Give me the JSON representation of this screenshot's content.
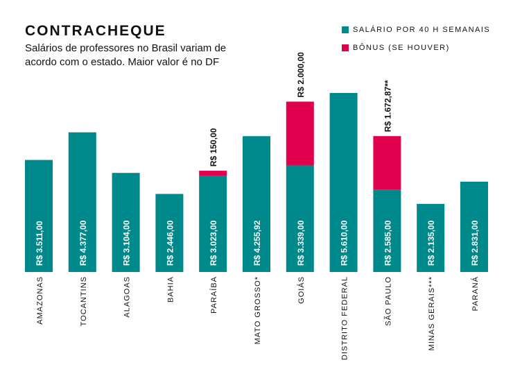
{
  "title": "CONTRACHEQUE",
  "subtitle": "Salários de professores no Brasil variam de acordo com o estado. Maior valor é no DF",
  "legend": [
    {
      "label": "SALÁRIO POR 40 H SEMANAIS",
      "color": "#00898a"
    },
    {
      "label": "BÔNUS (SE HOUVER)",
      "color": "#e0004d"
    }
  ],
  "chart_data": {
    "type": "bar",
    "stacked": true,
    "categories": [
      "AMAZONAS",
      "TOCANTINS",
      "ALAGOAS",
      "BAHIA",
      "PARAÍBA",
      "MATO GROSSO*",
      "GOIÁS",
      "DISTRITO FEDERAL",
      "SÃO PAULO",
      "MINAS GERAIS***",
      "PARANÁ"
    ],
    "series": [
      {
        "name": "SALÁRIO POR 40 H SEMANAIS",
        "color": "#00898a",
        "values": [
          3511,
          4377,
          3104,
          2446,
          3023,
          4255.92,
          3339,
          5610,
          2585,
          2135,
          2831
        ],
        "labels": [
          "R$ 3.511,00",
          "R$ 4.377,00",
          "R$ 3.104,00",
          "R$ 2.446,00",
          "R$ 3.023,00",
          "R$ 4.255,92",
          "R$ 3.339,00",
          "R$ 5.610,00",
          "R$ 2.585,00",
          "R$ 2.135,00",
          "R$ 2.831,00"
        ]
      },
      {
        "name": "BÔNUS (SE HOUVER)",
        "color": "#e0004d",
        "values": [
          0,
          0,
          0,
          0,
          150,
          0,
          2000,
          0,
          1672.87,
          0,
          0
        ],
        "labels": [
          "",
          "",
          "",
          "",
          "R$ 150,00",
          "",
          "R$ 2.000,00",
          "",
          "R$ 1.672,87**",
          "",
          ""
        ]
      }
    ],
    "ylim": [
      0,
      6000
    ],
    "grid": false,
    "legend_position": "top-right"
  }
}
